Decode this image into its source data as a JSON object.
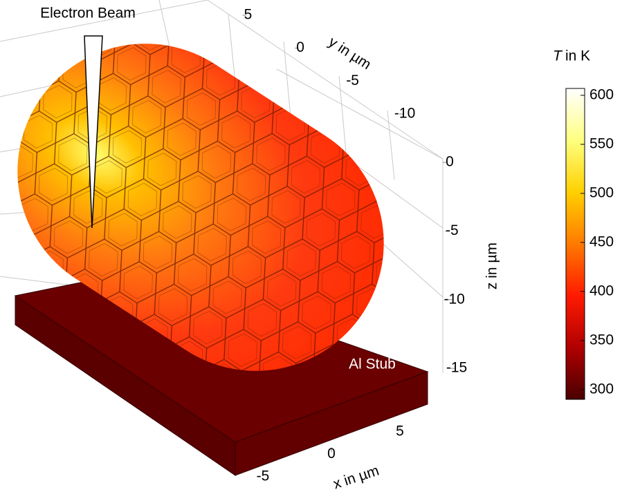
{
  "chart_data": {
    "type": "surface3d",
    "annotations": [
      "Electron Beam",
      "Al Stub"
    ],
    "xlabel": "x in µm",
    "ylabel": "y in µm",
    "zlabel": "z in µm",
    "xlim": [
      -8,
      8
    ],
    "xticks": [
      -5,
      0,
      5
    ],
    "ylim": [
      -12,
      7
    ],
    "yticks": [
      -10,
      -5,
      0,
      5
    ],
    "zlim": [
      -16,
      3
    ],
    "zticks": [
      -15,
      -10,
      -5,
      0
    ],
    "colorbar": {
      "label_symbol": "T",
      "label_unit": "in K",
      "lim": [
        290,
        607
      ],
      "ticks": [
        300,
        350,
        400,
        450,
        500,
        550,
        600
      ],
      "colors": [
        "#4a0000",
        "#b00000",
        "#ff1a00",
        "#ff7a00",
        "#ffd000",
        "#ffff80",
        "#ffffff"
      ]
    }
  }
}
